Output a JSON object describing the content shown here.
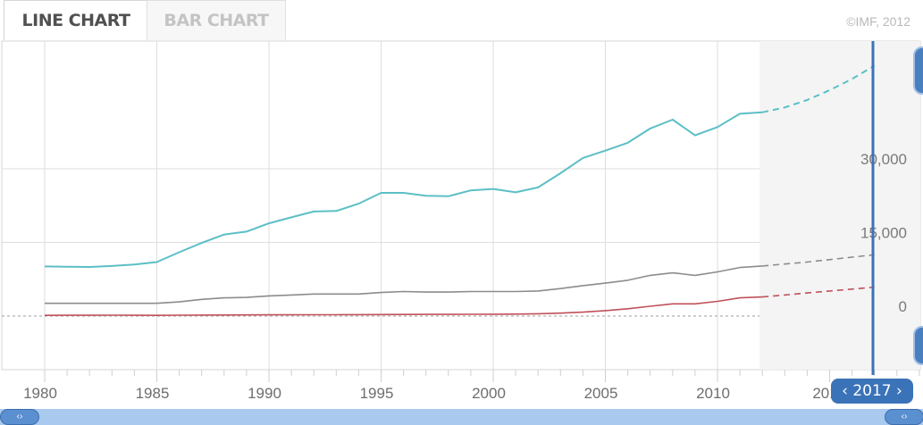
{
  "tabs": {
    "line_label": "LINE CHART",
    "bar_label": "BAR CHART"
  },
  "copyright": "©IMF, 2012",
  "slider": {
    "label": "‹ 2017 ›"
  },
  "icons": {
    "slider_top": "slider-handle-icon",
    "slider_bottom": "slider-handle-icon",
    "scroll_left": "scroll-handle-icon",
    "scroll_right": "scroll-handle-icon"
  },
  "colors": {
    "teal": "#5cbfc5",
    "gray": "#8c8c8c",
    "red": "#c0505a",
    "accent": "#3b73b9"
  },
  "chart_data": {
    "type": "line",
    "x": [
      1980,
      1981,
      1982,
      1983,
      1984,
      1985,
      1986,
      1987,
      1988,
      1989,
      1990,
      1991,
      1992,
      1993,
      1994,
      1995,
      1996,
      1997,
      1998,
      1999,
      2000,
      2001,
      2002,
      2003,
      2004,
      2005,
      2006,
      2007,
      2008,
      2009,
      2010,
      2011,
      2012,
      2013,
      2014,
      2015,
      2016,
      2017
    ],
    "forecast_from": 2012,
    "series": [
      {
        "color": "#5cbfc5",
        "values": [
          10100,
          10050,
          10000,
          10200,
          10500,
          11000,
          13000,
          14900,
          16600,
          17200,
          18900,
          20100,
          21300,
          21400,
          22900,
          25100,
          25100,
          24500,
          24400,
          25600,
          25900,
          25200,
          26200,
          29100,
          32200,
          33700,
          35300,
          38200,
          40000,
          36800,
          38500,
          41200,
          41500,
          42500,
          44000,
          46000,
          48300,
          51000
        ]
      },
      {
        "color": "#8c8c8c",
        "values": [
          2600,
          2600,
          2600,
          2600,
          2600,
          2600,
          2900,
          3400,
          3700,
          3800,
          4100,
          4300,
          4500,
          4500,
          4500,
          4800,
          5000,
          4900,
          4900,
          5000,
          5000,
          5000,
          5100,
          5600,
          6200,
          6700,
          7300,
          8300,
          8800,
          8300,
          9000,
          9900,
          10200,
          10600,
          11000,
          11500,
          12000,
          12500
        ]
      },
      {
        "color": "#c0505a",
        "values": [
          150,
          160,
          170,
          180,
          170,
          150,
          180,
          200,
          220,
          240,
          250,
          260,
          270,
          280,
          290,
          310,
          330,
          340,
          350,
          360,
          380,
          400,
          480,
          600,
          800,
          1100,
          1500,
          2000,
          2500,
          2500,
          3000,
          3700,
          3900,
          4300,
          4700,
          5100,
          5500,
          5900
        ]
      }
    ],
    "x_ticks": [
      "1980",
      "1985",
      "1990",
      "1995",
      "2000",
      "2005",
      "2010",
      "201"
    ],
    "y_ticks": [
      "0",
      "15,000",
      "30,000"
    ],
    "ylim": [
      -3000,
      56000
    ],
    "xlim": [
      1980,
      2017
    ]
  }
}
